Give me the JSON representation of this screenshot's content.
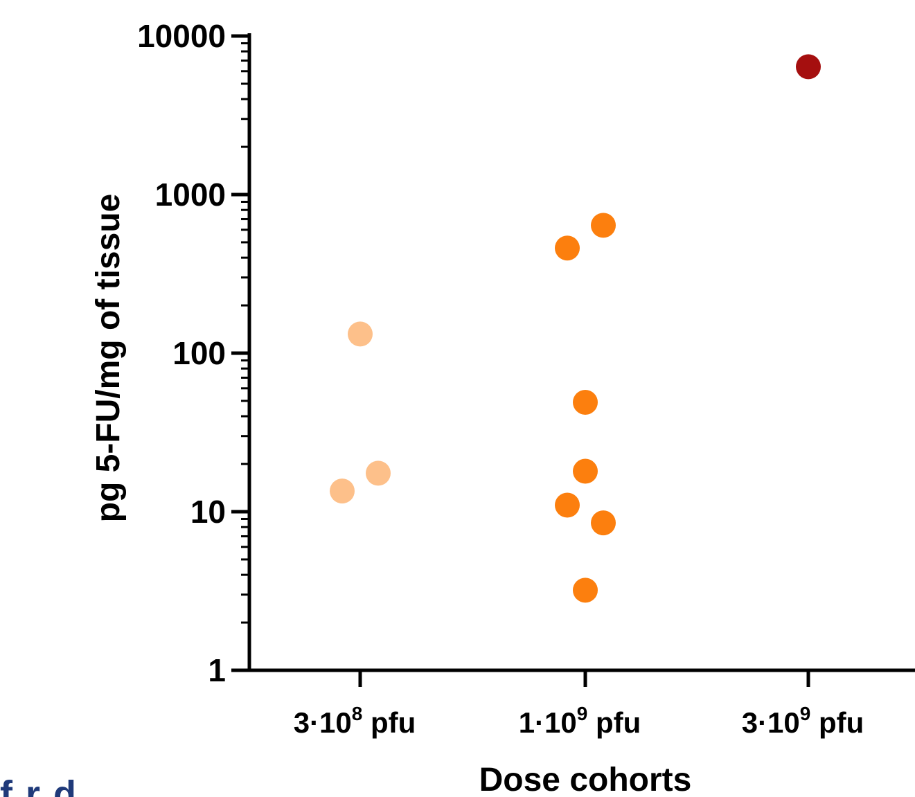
{
  "chart_data": {
    "type": "scatter",
    "title": "",
    "xlabel": "Dose cohorts",
    "ylabel": "pg 5-FU/mg of tissue",
    "yscale": "log",
    "ylim": [
      1,
      10000
    ],
    "y_ticks": [
      "1",
      "10",
      "100",
      "1000",
      "10000"
    ],
    "categories": [
      {
        "label": "3·10",
        "sup": "8",
        "unit": " pfu"
      },
      {
        "label": "1·10",
        "sup": "9",
        "unit": " pfu"
      },
      {
        "label": "3·10",
        "sup": "9",
        "unit": " pfu"
      }
    ],
    "series": [
      {
        "category": 0,
        "color": "#fdc08a",
        "values": [
          132,
          13.5,
          17.5
        ]
      },
      {
        "category": 1,
        "color": "#fc7f0e",
        "values": [
          640,
          460,
          49,
          18,
          11,
          8.5,
          3.2
        ]
      },
      {
        "category": 2,
        "color": "#a50f0f",
        "values": [
          6400
        ]
      }
    ],
    "grid": false,
    "legend": "none"
  },
  "footer": {
    "partial_text": "f    r  d"
  }
}
